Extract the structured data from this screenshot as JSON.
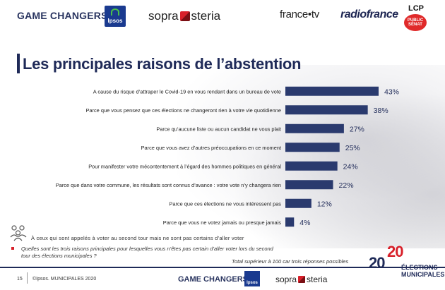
{
  "header": {
    "logos": {
      "game_changers": "GAME CHANGERS",
      "ipsos": "Ipsos",
      "sopra_left": "sopra",
      "sopra_right": "steria",
      "france_tv": "france•tv",
      "radio_france": "radiofrance",
      "lcp": "LCP",
      "lcp_badge": "PUBLIC SÉNAT"
    }
  },
  "title": "Les principales raisons de l’abstention",
  "chart_data": {
    "type": "bar",
    "orientation": "horizontal",
    "categories": [
      "A cause du risque d’attraper le Covid-19 en vous rendant dans un bureau de vote",
      "Parce que vous pensez que ces élections ne changeront rien à votre vie quotidienne",
      "Parce qu’aucune liste ou aucun candidat ne vous plait",
      "Parce que vous avez d’autres préoccupations en ce moment",
      "Pour manifester votre mécontentement à l’égard des hommes politiques en général",
      "Parce que dans votre commune, les résultats sont connus d’avance : votre vote n’y changera rien",
      "Parce que ces élections ne vous intéressent pas",
      "Parce que vous ne votez jamais ou presque jamais"
    ],
    "values": [
      43,
      38,
      27,
      25,
      24,
      22,
      12,
      4
    ],
    "value_labels": [
      "43%",
      "38%",
      "27%",
      "25%",
      "24%",
      "22%",
      "12%",
      "4%"
    ],
    "xlim": [
      0,
      43
    ],
    "bar_color": "#2a3a6e"
  },
  "footnote": {
    "sample": "À ceux qui sont appelés à voter au second tour mais ne sont pas certains d’aller voter",
    "question": "Quelles sont les trois raisons principales pour lesquelles vous n’êtes pas certain d’aller voter lors du second tour des élections municipales ?",
    "total": "Total supérieur à 100 car trois réponses possibles"
  },
  "badge": {
    "year_top": "20",
    "year_bottom": "20",
    "line1": "ÉLECTIONS",
    "line2": "MUNICIPALES"
  },
  "footer": {
    "page": "15",
    "copyright": "©Ipsos.  MUNICIPALES 2020",
    "game_changers": "GAME CHANGERS",
    "ipsos": "Ipsos",
    "sopra_left": "sopra",
    "sopra_right": "steria"
  },
  "colors": {
    "bar": "#2a3a6e",
    "title": "#1f2a58",
    "accent_red": "#d8202a"
  }
}
